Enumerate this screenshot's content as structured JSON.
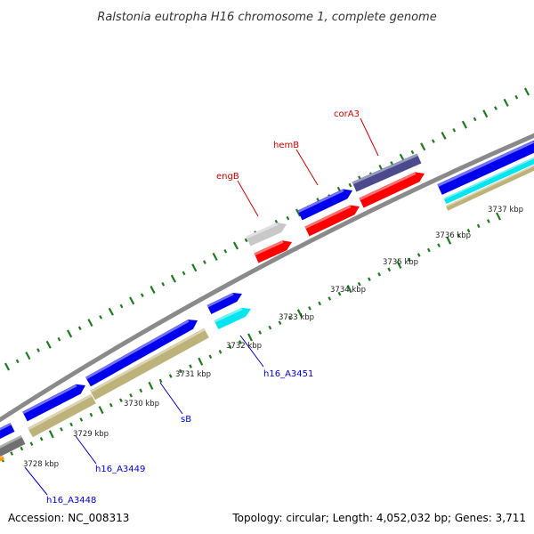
{
  "title": "Ralstonia eutropha H16 chromosome 1, complete genome",
  "footer": {
    "accession": "Accession: NC_008313",
    "summary": "Topology: circular; Length: 4,052,032 bp; Genes: 3,711"
  },
  "colors": {
    "backbone": "#8a8a8a",
    "ticks": "#1f7a1f",
    "label_red": "#cc0000",
    "label_blue": "#0000cc",
    "blue": "#0000ee",
    "red": "#ff0000",
    "navy": "#4a4a8c",
    "khaki": "#bdb27a",
    "cyan": "#00e5ee",
    "grey": "#c8c8c8",
    "dark_grey": "#707070",
    "orange": "#ff9900"
  },
  "tick_labels": [
    "3728 kbp",
    "3729 kbp",
    "3730 kbp",
    "3731 kbp",
    "3732 kbp",
    "3733 kbp",
    "3734 kbp",
    "3735 kbp",
    "3736 kbp",
    "3737 kbp"
  ],
  "gene_labels": [
    {
      "id": "corA3",
      "text": "corA3",
      "color": "label_red"
    },
    {
      "id": "hemB",
      "text": "hemB",
      "color": "label_red"
    },
    {
      "id": "engB",
      "text": "engB",
      "color": "label_red"
    },
    {
      "id": "h16-a3451",
      "text": "h16_A3451",
      "color": "label_blue"
    },
    {
      "id": "sb",
      "text": "sB",
      "color": "label_blue"
    },
    {
      "id": "h16-a3449",
      "text": "h16_A3449",
      "color": "label_blue"
    },
    {
      "id": "h16-a3448",
      "text": "h16_A3448",
      "color": "label_blue"
    }
  ]
}
